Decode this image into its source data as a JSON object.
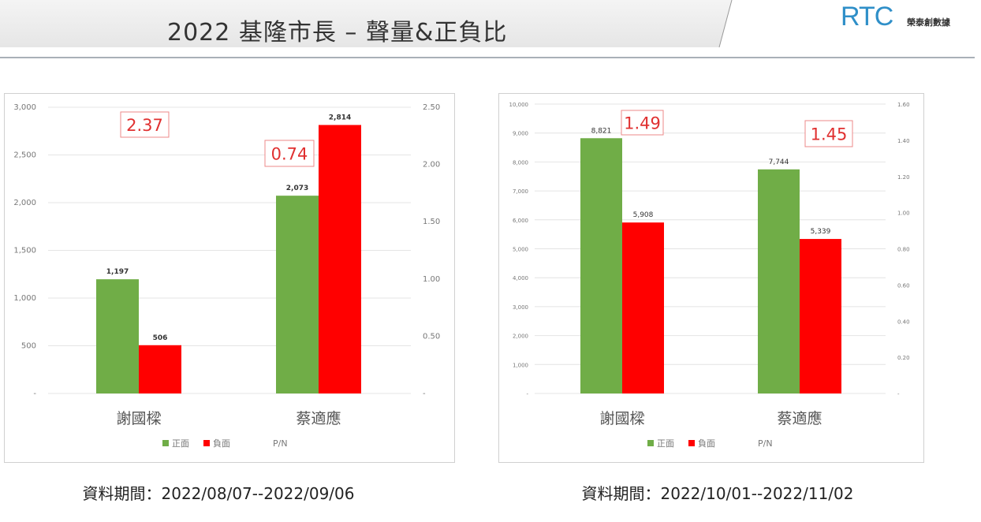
{
  "header": {
    "title": "2022 基隆市長 – 聲量&正負比",
    "logo_text": "RTC",
    "logo_subtitle": "榮泰創數據"
  },
  "colors": {
    "positive": "#70ad47",
    "negative": "#ff0000",
    "annotation": "#e03030"
  },
  "chart_data": [
    {
      "type": "bar",
      "categories": [
        "謝國樑",
        "蔡適應"
      ],
      "series": [
        {
          "name": "正面",
          "values": [
            1197,
            2073
          ],
          "labels": [
            "1,197",
            "2,073"
          ]
        },
        {
          "name": "負面",
          "values": [
            506,
            2814
          ],
          "labels": [
            "506",
            "2,814"
          ]
        },
        {
          "name": "P/N",
          "values": [
            2.37,
            0.74
          ],
          "labels": [
            "2.37",
            "0.74"
          ]
        }
      ],
      "ylim": [
        0,
        3000
      ],
      "yticks": [
        "-",
        "500",
        "1,000",
        "1,500",
        "2,000",
        "2,500",
        "3,000"
      ],
      "y2lim": [
        0,
        2.5
      ],
      "y2ticks": [
        "-",
        "0.50",
        "1.00",
        "1.50",
        "2.00",
        "2.50"
      ],
      "grid": true,
      "legend": "bottom",
      "caption": "資料期間：2022/08/07--2022/09/06"
    },
    {
      "type": "bar",
      "categories": [
        "謝國樑",
        "蔡適應"
      ],
      "series": [
        {
          "name": "正面",
          "values": [
            8821,
            7744
          ],
          "labels": [
            "8,821",
            "7,744"
          ]
        },
        {
          "name": "負面",
          "values": [
            5908,
            5339
          ],
          "labels": [
            "5,908",
            "5,339"
          ]
        },
        {
          "name": "P/N",
          "values": [
            1.49,
            1.45
          ],
          "labels": [
            "1.49",
            "1.45"
          ]
        }
      ],
      "ylim": [
        0,
        10000
      ],
      "yticks": [
        "-",
        "1,000",
        "2,000",
        "3,000",
        "4,000",
        "5,000",
        "6,000",
        "7,000",
        "8,000",
        "9,000",
        "10,000"
      ],
      "y2lim": [
        0,
        1.6
      ],
      "y2ticks": [
        "-",
        "0.20",
        "0.40",
        "0.60",
        "0.80",
        "1.00",
        "1.20",
        "1.40",
        "1.60"
      ],
      "grid": true,
      "legend": "bottom",
      "caption": "資料期間：2022/10/01--2022/11/02"
    }
  ]
}
